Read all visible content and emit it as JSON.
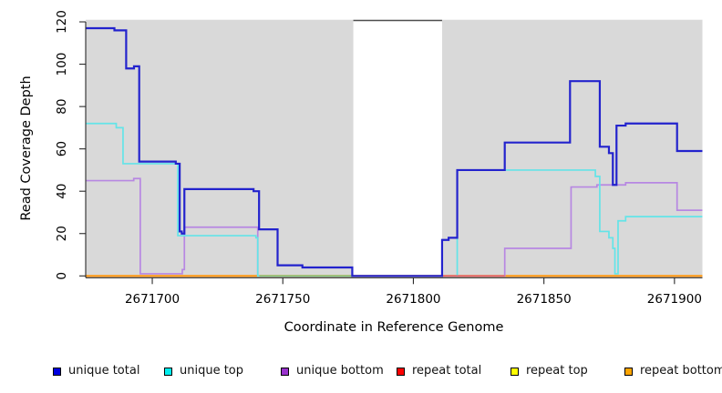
{
  "chart_data": {
    "type": "line",
    "subtype": "step-after-coverage",
    "title": "",
    "xlabel": "Coordinate in Reference Genome",
    "ylabel": "Read Coverage Depth",
    "xlim": [
      2671674.5,
      2671910.7
    ],
    "ylim": [
      -0.65,
      121.0
    ],
    "x_ticks": [
      2671700,
      2671750,
      2671800,
      2671850,
      2671900
    ],
    "y_ticks": [
      0,
      20,
      40,
      60,
      80,
      100,
      120
    ],
    "grid": false,
    "panel_bg": "#d9d9d9",
    "axis_color": "#2a2a2a",
    "masked_region": {
      "x0": 2671777,
      "x1": 2671811,
      "fill": "#ffffff",
      "top_border_color": "#4d4d4d"
    },
    "series": [
      {
        "name": "unique total",
        "color": "#2323cd",
        "width": 2.2,
        "points": [
          [
            2671674.5,
            117
          ],
          [
            2671685.5,
            116
          ],
          [
            2671690,
            98
          ],
          [
            2671693,
            99
          ],
          [
            2671695,
            54
          ],
          [
            2671709,
            53
          ],
          [
            2671710.5,
            21
          ],
          [
            2671711.3,
            20
          ],
          [
            2671712.3,
            41
          ],
          [
            2671738.8,
            40
          ],
          [
            2671740.9,
            22
          ],
          [
            2671748,
            5
          ],
          [
            2671757.5,
            4
          ],
          [
            2671776.6,
            0
          ],
          [
            2671811,
            17
          ],
          [
            2671813.5,
            18
          ],
          [
            2671816.8,
            50
          ],
          [
            2671835,
            63
          ],
          [
            2671860,
            92
          ],
          [
            2671871.4,
            61
          ],
          [
            2671874.9,
            58
          ],
          [
            2671876.4,
            43
          ],
          [
            2671877.8,
            71
          ],
          [
            2671881.3,
            72
          ],
          [
            2671901,
            59
          ]
        ]
      },
      {
        "name": "unique top",
        "color": "#63e4e8",
        "width": 1.7,
        "points": [
          [
            2671674.5,
            72
          ],
          [
            2671686.2,
            70
          ],
          [
            2671688.8,
            53
          ],
          [
            2671709.8,
            19
          ],
          [
            2671739.7,
            18
          ],
          [
            2671740.4,
            0
          ],
          [
            2671816.8,
            50
          ],
          [
            2671869.7,
            47
          ],
          [
            2671871.4,
            21
          ],
          [
            2671874.9,
            18
          ],
          [
            2671876.4,
            13
          ],
          [
            2671877.2,
            1
          ],
          [
            2671878.4,
            26
          ],
          [
            2671881.3,
            28
          ]
        ]
      },
      {
        "name": "unique bottom",
        "color": "#b787e2",
        "width": 1.7,
        "points": [
          [
            2671674.5,
            45
          ],
          [
            2671692.9,
            46
          ],
          [
            2671695.4,
            1
          ],
          [
            2671711.5,
            3
          ],
          [
            2671712.3,
            23
          ],
          [
            2671740.4,
            0
          ],
          [
            2671835,
            13
          ],
          [
            2671860.4,
            42
          ],
          [
            2671870.3,
            43
          ],
          [
            2671881.3,
            44
          ],
          [
            2671901,
            31
          ]
        ]
      },
      {
        "name": "repeat total",
        "color": "#ff0000",
        "width": 1.7,
        "points": [
          [
            2671674.5,
            0
          ]
        ]
      },
      {
        "name": "repeat top",
        "color": "#ffff00",
        "width": 1.7,
        "points": [
          [
            2671674.5,
            0
          ]
        ]
      },
      {
        "name": "repeat bottom",
        "color": "#ff9912",
        "width": 2,
        "points": [
          [
            2671674.5,
            0
          ]
        ]
      }
    ],
    "baseline_overlays": [
      {
        "x0": 2671741,
        "x1": 2671777,
        "color": "#7cc47f",
        "width": 1.6
      },
      {
        "x0": 2671811,
        "x1": 2671835,
        "color": "#e05c6e",
        "width": 1.6
      }
    ],
    "legend": {
      "position": "bottom",
      "items": [
        {
          "label": "unique total",
          "color": "#0000e0"
        },
        {
          "label": "unique top",
          "color": "#00eeee"
        },
        {
          "label": "unique bottom",
          "color": "#9932cc"
        },
        {
          "label": "repeat total",
          "color": "#ff0000"
        },
        {
          "label": "repeat top",
          "color": "#ffff00"
        },
        {
          "label": "repeat bottom",
          "color": "#ffa500"
        }
      ]
    }
  }
}
